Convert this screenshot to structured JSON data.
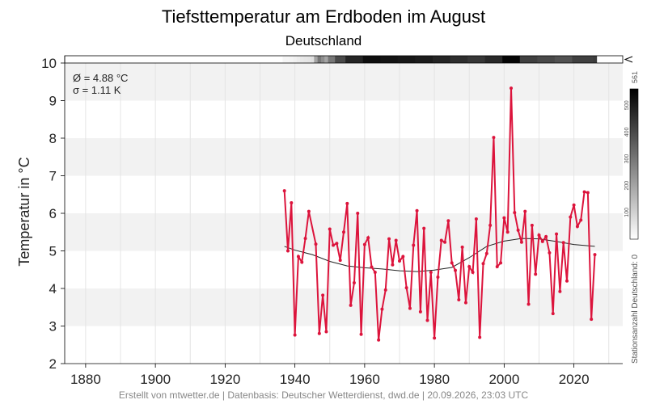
{
  "chart_data": {
    "type": "line",
    "title": "Tiefsttemperatur am Erdboden im August",
    "subtitle": "Deutschland",
    "ylabel": "Temperatur in °C",
    "xlim": [
      1874,
      2034
    ],
    "ylim": [
      2,
      10
    ],
    "x_ticks": [
      1880,
      1900,
      1920,
      1940,
      1960,
      1980,
      2000,
      2020
    ],
    "y_ticks": [
      2,
      3,
      4,
      5,
      6,
      7,
      8,
      9,
      10
    ],
    "grid": true,
    "stats": {
      "mean": "Ø = 4.88 °C",
      "sigma": "σ = 1.11 K"
    },
    "colors": {
      "series": "#dc143c",
      "trend": "#222222",
      "band": "#f2f2f2"
    },
    "series": [
      {
        "x": [
          1937,
          1938,
          1939,
          1940,
          1941,
          1942,
          1943,
          1944,
          1946,
          1947,
          1948,
          1949,
          1950,
          1951,
          1952,
          1953,
          1954,
          1955,
          1956,
          1957,
          1958,
          1959,
          1960,
          1961,
          1962,
          1963,
          1964,
          1965,
          1966,
          1967,
          1968,
          1969,
          1970,
          1971,
          1972,
          1973,
          1974,
          1975,
          1976,
          1977,
          1978,
          1979,
          1980,
          1981,
          1982,
          1983,
          1984,
          1985,
          1986,
          1987,
          1988,
          1989,
          1990,
          1991,
          1992,
          1993,
          1994,
          1995,
          1996,
          1997,
          1998,
          1999,
          2000,
          2001,
          2002,
          2003,
          2004,
          2005,
          2006,
          2007,
          2008,
          2009,
          2010,
          2011,
          2012,
          2013,
          2014,
          2015,
          2016,
          2017,
          2018,
          2019,
          2020,
          2021,
          2022,
          2023,
          2024,
          2025,
          2026
        ],
        "values": [
          6.6,
          5.0,
          6.28,
          2.76,
          4.85,
          4.7,
          5.33,
          6.05,
          5.18,
          2.8,
          3.82,
          2.85,
          5.58,
          5.15,
          5.2,
          4.75,
          5.5,
          6.26,
          3.55,
          4.15,
          6.0,
          2.78,
          5.17,
          5.35,
          4.57,
          4.43,
          2.63,
          3.45,
          3.96,
          5.32,
          4.63,
          5.28,
          4.73,
          4.85,
          4.02,
          3.47,
          5.15,
          6.07,
          3.38,
          5.6,
          3.15,
          4.43,
          2.68,
          4.3,
          5.28,
          5.23,
          5.8,
          4.68,
          4.48,
          3.7,
          5.1,
          3.62,
          4.58,
          4.43,
          5.85,
          2.7,
          4.66,
          4.93,
          5.68,
          8.02,
          4.58,
          4.68,
          5.88,
          5.5,
          9.33,
          6.02,
          5.55,
          5.23,
          6.05,
          3.58,
          5.68,
          4.38,
          5.42,
          5.25,
          5.38,
          4.95,
          3.33,
          5.45,
          3.92,
          5.22,
          4.2,
          5.9,
          6.22,
          5.65,
          5.82,
          6.57,
          6.55,
          3.18,
          4.9
        ]
      }
    ],
    "trend": {
      "x": [
        1937,
        1940,
        1945,
        1950,
        1955,
        1960,
        1965,
        1970,
        1975,
        1980,
        1985,
        1990,
        1995,
        2000,
        2005,
        2010,
        2015,
        2020,
        2026
      ],
      "values": [
        5.12,
        5.02,
        4.9,
        4.72,
        4.6,
        4.55,
        4.52,
        4.47,
        4.45,
        4.49,
        4.56,
        4.82,
        5.12,
        5.26,
        5.33,
        5.32,
        5.25,
        5.17,
        5.12
      ]
    },
    "station_count": {
      "label": "Stationsanzahl Deutschland: 0",
      "max_label": "561",
      "scale_ticks": [
        100,
        200,
        300,
        400,
        500
      ],
      "max": 561,
      "x": [
        1937,
        1939,
        1940,
        1941,
        1942,
        1943,
        1944,
        1945,
        1946,
        1947,
        1948,
        1949,
        1950,
        1952,
        1955,
        1960,
        1965,
        1970,
        1975,
        1980,
        1985,
        1990,
        1995,
        2000,
        2005,
        2010,
        2015,
        2020,
        2026
      ],
      "values": [
        20,
        25,
        30,
        40,
        50,
        55,
        60,
        70,
        200,
        300,
        250,
        200,
        300,
        400,
        480,
        530,
        520,
        510,
        500,
        480,
        460,
        440,
        470,
        550,
        420,
        400,
        380,
        420,
        430
      ]
    }
  },
  "footer": {
    "credit": "Erstellt von mtwetter.de | Datenbasis: Deutscher Wetterdienst, dwd.de | 20.09.2026, 23:03 UTC"
  }
}
